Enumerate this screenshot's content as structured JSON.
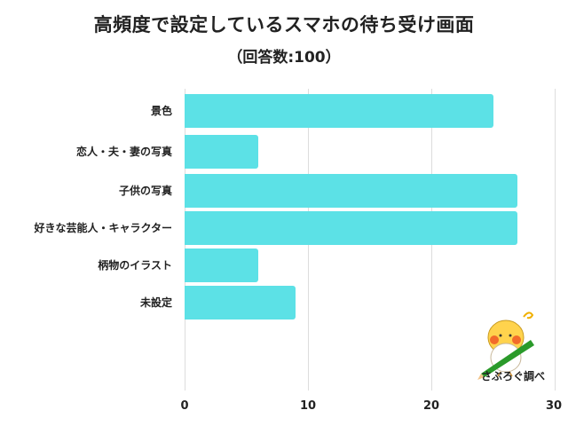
{
  "header": {
    "title": "高頻度で設定しているスマホの待ち受け画面",
    "subtitle": "（回答数:100）"
  },
  "branding": {
    "label": "さぶろぐ調べ",
    "icon": "cockatiel-with-pencil-icon"
  },
  "colors": {
    "bar": "#5ce1e6",
    "grid": "#dddddd",
    "text": "#222222"
  },
  "axis": {
    "ticks": [
      "0",
      "10",
      "20",
      "30"
    ]
  },
  "chart_data": {
    "type": "bar",
    "orientation": "horizontal",
    "title": "高頻度で設定しているスマホの待ち受け画面",
    "subtitle": "（回答数:100）",
    "categories": [
      "景色",
      "恋人・夫・妻の写真",
      "子供の写真",
      "好きな芸能人・キャラクター",
      "柄物のイラスト",
      "未設定"
    ],
    "values": [
      25,
      6,
      27,
      27,
      6,
      9
    ],
    "xlabel": "",
    "ylabel": "",
    "xlim": [
      0,
      30
    ],
    "xticks": [
      0,
      10,
      20,
      30
    ],
    "grid": true,
    "legend": null,
    "annotation": "さぶろぐ調べ"
  }
}
